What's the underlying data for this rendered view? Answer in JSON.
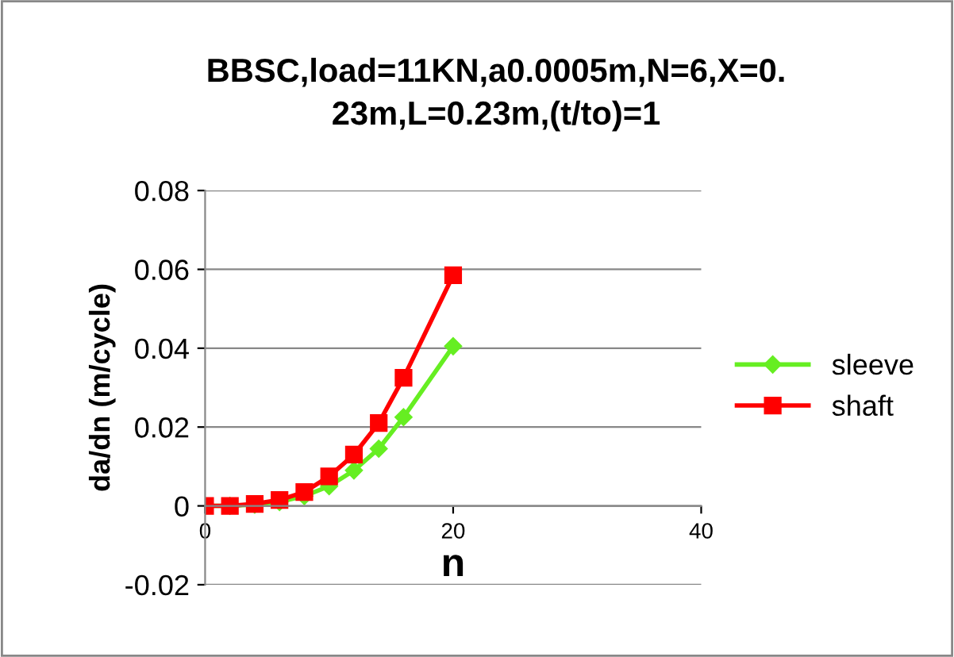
{
  "chart_data": {
    "type": "line",
    "title": "BBSC,load=11KN,a0.0005m,N=6,X=0.\n23m,L=0.23m,(t/to)=1",
    "xlabel": "n",
    "ylabel": "da/dn (m/cycle)",
    "x": [
      0,
      2,
      4,
      6,
      8,
      10,
      12,
      14,
      16,
      20
    ],
    "series": [
      {
        "name": "sleeve",
        "color": "#66ee22",
        "marker": "diamond",
        "values": [
          0,
          0,
          0.0003,
          0.001,
          0.0025,
          0.005,
          0.009,
          0.0145,
          0.0225,
          0.0405
        ]
      },
      {
        "name": "shaft",
        "color": "#ff0000",
        "marker": "square",
        "values": [
          0,
          0,
          0.0005,
          0.0015,
          0.0035,
          0.0075,
          0.013,
          0.021,
          0.0325,
          0.0585
        ]
      }
    ],
    "xlim": [
      0,
      40
    ],
    "xticks": [
      0,
      20,
      40
    ],
    "ylim": [
      -0.02,
      0.08
    ],
    "yticks": [
      -0.02,
      0,
      0.02,
      0.04,
      0.06,
      0.08
    ],
    "grid": "y",
    "legend": "right"
  }
}
